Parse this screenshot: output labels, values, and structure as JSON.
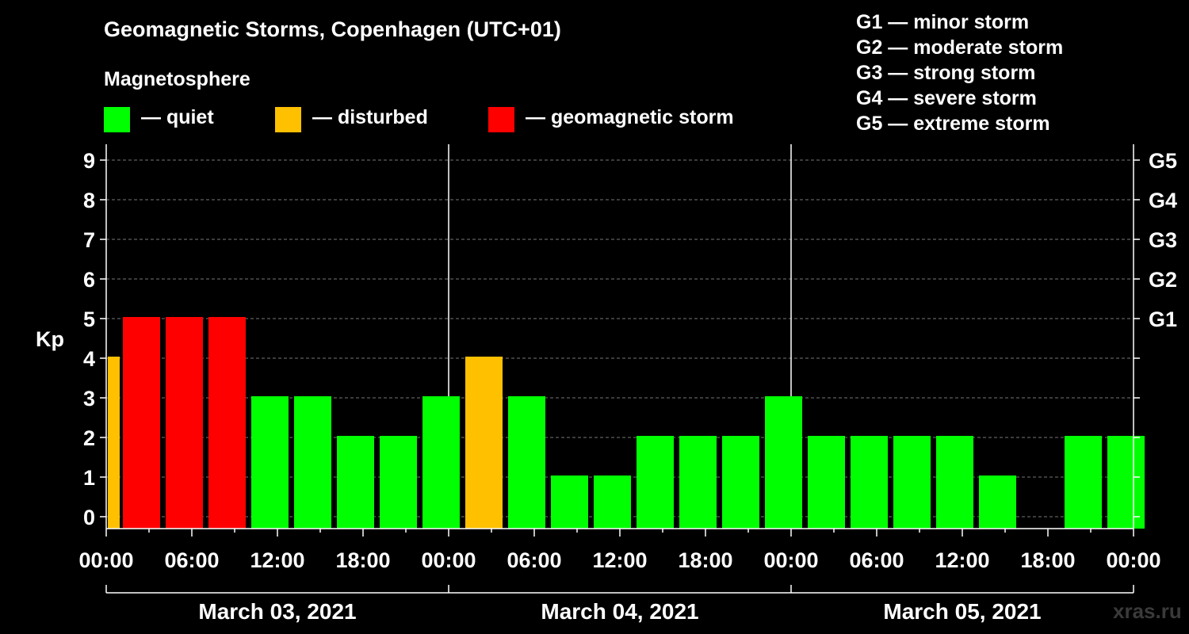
{
  "header": {
    "title": "Geomagnetic Storms, Copenhagen (UTC+01)",
    "magnetosphere": "Magnetosphere"
  },
  "legend": [
    {
      "color": "#00ff00",
      "label": "— quiet"
    },
    {
      "color": "#ffc000",
      "label": "— disturbed"
    },
    {
      "color": "#ff0000",
      "label": "— geomagnetic storm"
    }
  ],
  "storm_scale": [
    "G1 — minor storm",
    "G2 — moderate storm",
    "G3 — strong storm",
    "G4 — severe storm",
    "G5 — extreme storm"
  ],
  "watermark": "xras.ru",
  "chart_data": {
    "type": "bar",
    "ylabel": "Kp",
    "ylim": [
      0,
      9
    ],
    "yticks": [
      "0",
      "1",
      "2",
      "3",
      "4",
      "5",
      "6",
      "7",
      "8",
      "9"
    ],
    "right_axis_labels": [
      {
        "kp": 5,
        "label": "G1"
      },
      {
        "kp": 6,
        "label": "G2"
      },
      {
        "kp": 7,
        "label": "G3"
      },
      {
        "kp": 8,
        "label": "G4"
      },
      {
        "kp": 9,
        "label": "G5"
      }
    ],
    "x_tick_labels": [
      "00:00",
      "06:00",
      "12:00",
      "18:00",
      "00:00",
      "06:00",
      "12:00",
      "18:00",
      "00:00",
      "06:00",
      "12:00",
      "18:00",
      "00:00"
    ],
    "days": [
      "March 03, 2021",
      "March 04, 2021",
      "March 05, 2021"
    ],
    "grid": "horizontal dashed",
    "colors": {
      "quiet": "#00ff00",
      "disturbed": "#ffc000",
      "storm": "#ff0000"
    },
    "bars": [
      {
        "day": "March 03, 2021",
        "start": "00:00",
        "kp": 4,
        "level": "disturbed"
      },
      {
        "day": "March 03, 2021",
        "start": "01:00",
        "kp": 5,
        "level": "storm"
      },
      {
        "day": "March 03, 2021",
        "start": "04:00",
        "kp": 5,
        "level": "storm"
      },
      {
        "day": "March 03, 2021",
        "start": "07:00",
        "kp": 5,
        "level": "storm"
      },
      {
        "day": "March 03, 2021",
        "start": "10:00",
        "kp": 3,
        "level": "quiet"
      },
      {
        "day": "March 03, 2021",
        "start": "13:00",
        "kp": 3,
        "level": "quiet"
      },
      {
        "day": "March 03, 2021",
        "start": "16:00",
        "kp": 2,
        "level": "quiet"
      },
      {
        "day": "March 03, 2021",
        "start": "19:00",
        "kp": 2,
        "level": "quiet"
      },
      {
        "day": "March 03, 2021",
        "start": "22:00",
        "kp": 3,
        "level": "quiet"
      },
      {
        "day": "March 04, 2021",
        "start": "01:00",
        "kp": 4,
        "level": "disturbed"
      },
      {
        "day": "March 04, 2021",
        "start": "04:00",
        "kp": 3,
        "level": "quiet"
      },
      {
        "day": "March 04, 2021",
        "start": "07:00",
        "kp": 1,
        "level": "quiet"
      },
      {
        "day": "March 04, 2021",
        "start": "10:00",
        "kp": 1,
        "level": "quiet"
      },
      {
        "day": "March 04, 2021",
        "start": "13:00",
        "kp": 2,
        "level": "quiet"
      },
      {
        "day": "March 04, 2021",
        "start": "16:00",
        "kp": 2,
        "level": "quiet"
      },
      {
        "day": "March 04, 2021",
        "start": "19:00",
        "kp": 2,
        "level": "quiet"
      },
      {
        "day": "March 04, 2021",
        "start": "22:00",
        "kp": 3,
        "level": "quiet"
      },
      {
        "day": "March 05, 2021",
        "start": "01:00",
        "kp": 2,
        "level": "quiet"
      },
      {
        "day": "March 05, 2021",
        "start": "04:00",
        "kp": 2,
        "level": "quiet"
      },
      {
        "day": "March 05, 2021",
        "start": "07:00",
        "kp": 2,
        "level": "quiet"
      },
      {
        "day": "March 05, 2021",
        "start": "10:00",
        "kp": 2,
        "level": "quiet"
      },
      {
        "day": "March 05, 2021",
        "start": "13:00",
        "kp": 1,
        "level": "quiet"
      },
      {
        "day": "March 05, 2021",
        "start": "19:00",
        "kp": 2,
        "level": "quiet"
      },
      {
        "day": "March 05, 2021",
        "start": "22:00",
        "kp": 2,
        "level": "quiet"
      }
    ]
  }
}
